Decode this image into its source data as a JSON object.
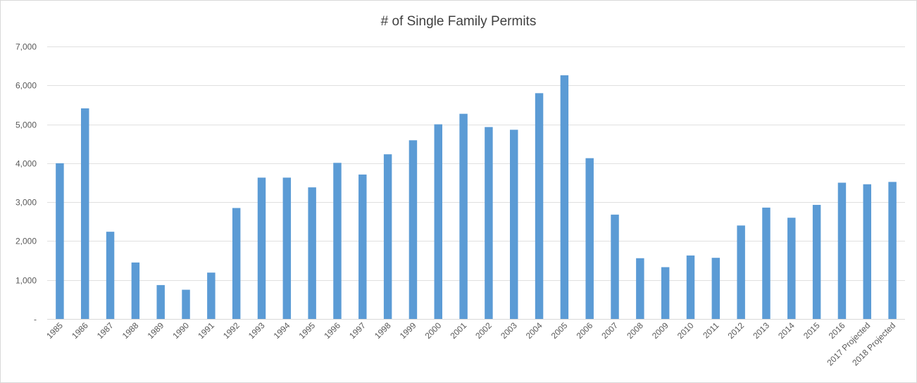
{
  "chart_data": {
    "type": "bar",
    "title": "# of Single Family Permits",
    "xlabel": "",
    "ylabel": "",
    "ylim": [
      0,
      7000
    ],
    "yticks": [
      0,
      1000,
      2000,
      3000,
      4000,
      5000,
      6000,
      7000
    ],
    "ytick_labels": [
      "-",
      "1,000",
      "2,000",
      "3,000",
      "4,000",
      "5,000",
      "6,000",
      "7,000"
    ],
    "grid": true,
    "legend": "none",
    "bar_color": "#5b9bd5",
    "categories": [
      "1985",
      "1986",
      "1987",
      "1988",
      "1989",
      "1990",
      "1991",
      "1992",
      "1993",
      "1994",
      "1995",
      "1996",
      "1997",
      "1998",
      "1999",
      "2000",
      "2001",
      "2002",
      "2003",
      "2004",
      "2005",
      "2006",
      "2007",
      "2008",
      "2009",
      "2010",
      "2011",
      "2012",
      "2013",
      "2014",
      "2015",
      "2016",
      "2017 Projected",
      "2018 Projected"
    ],
    "values": [
      4000,
      5410,
      2240,
      1450,
      870,
      750,
      1190,
      2850,
      3630,
      3630,
      3380,
      4010,
      3710,
      4230,
      4590,
      5000,
      5270,
      4930,
      4860,
      5800,
      6260,
      4130,
      2680,
      1560,
      1330,
      1630,
      1570,
      2400,
      2860,
      2600,
      2930,
      3500,
      3460,
      3520
    ]
  }
}
